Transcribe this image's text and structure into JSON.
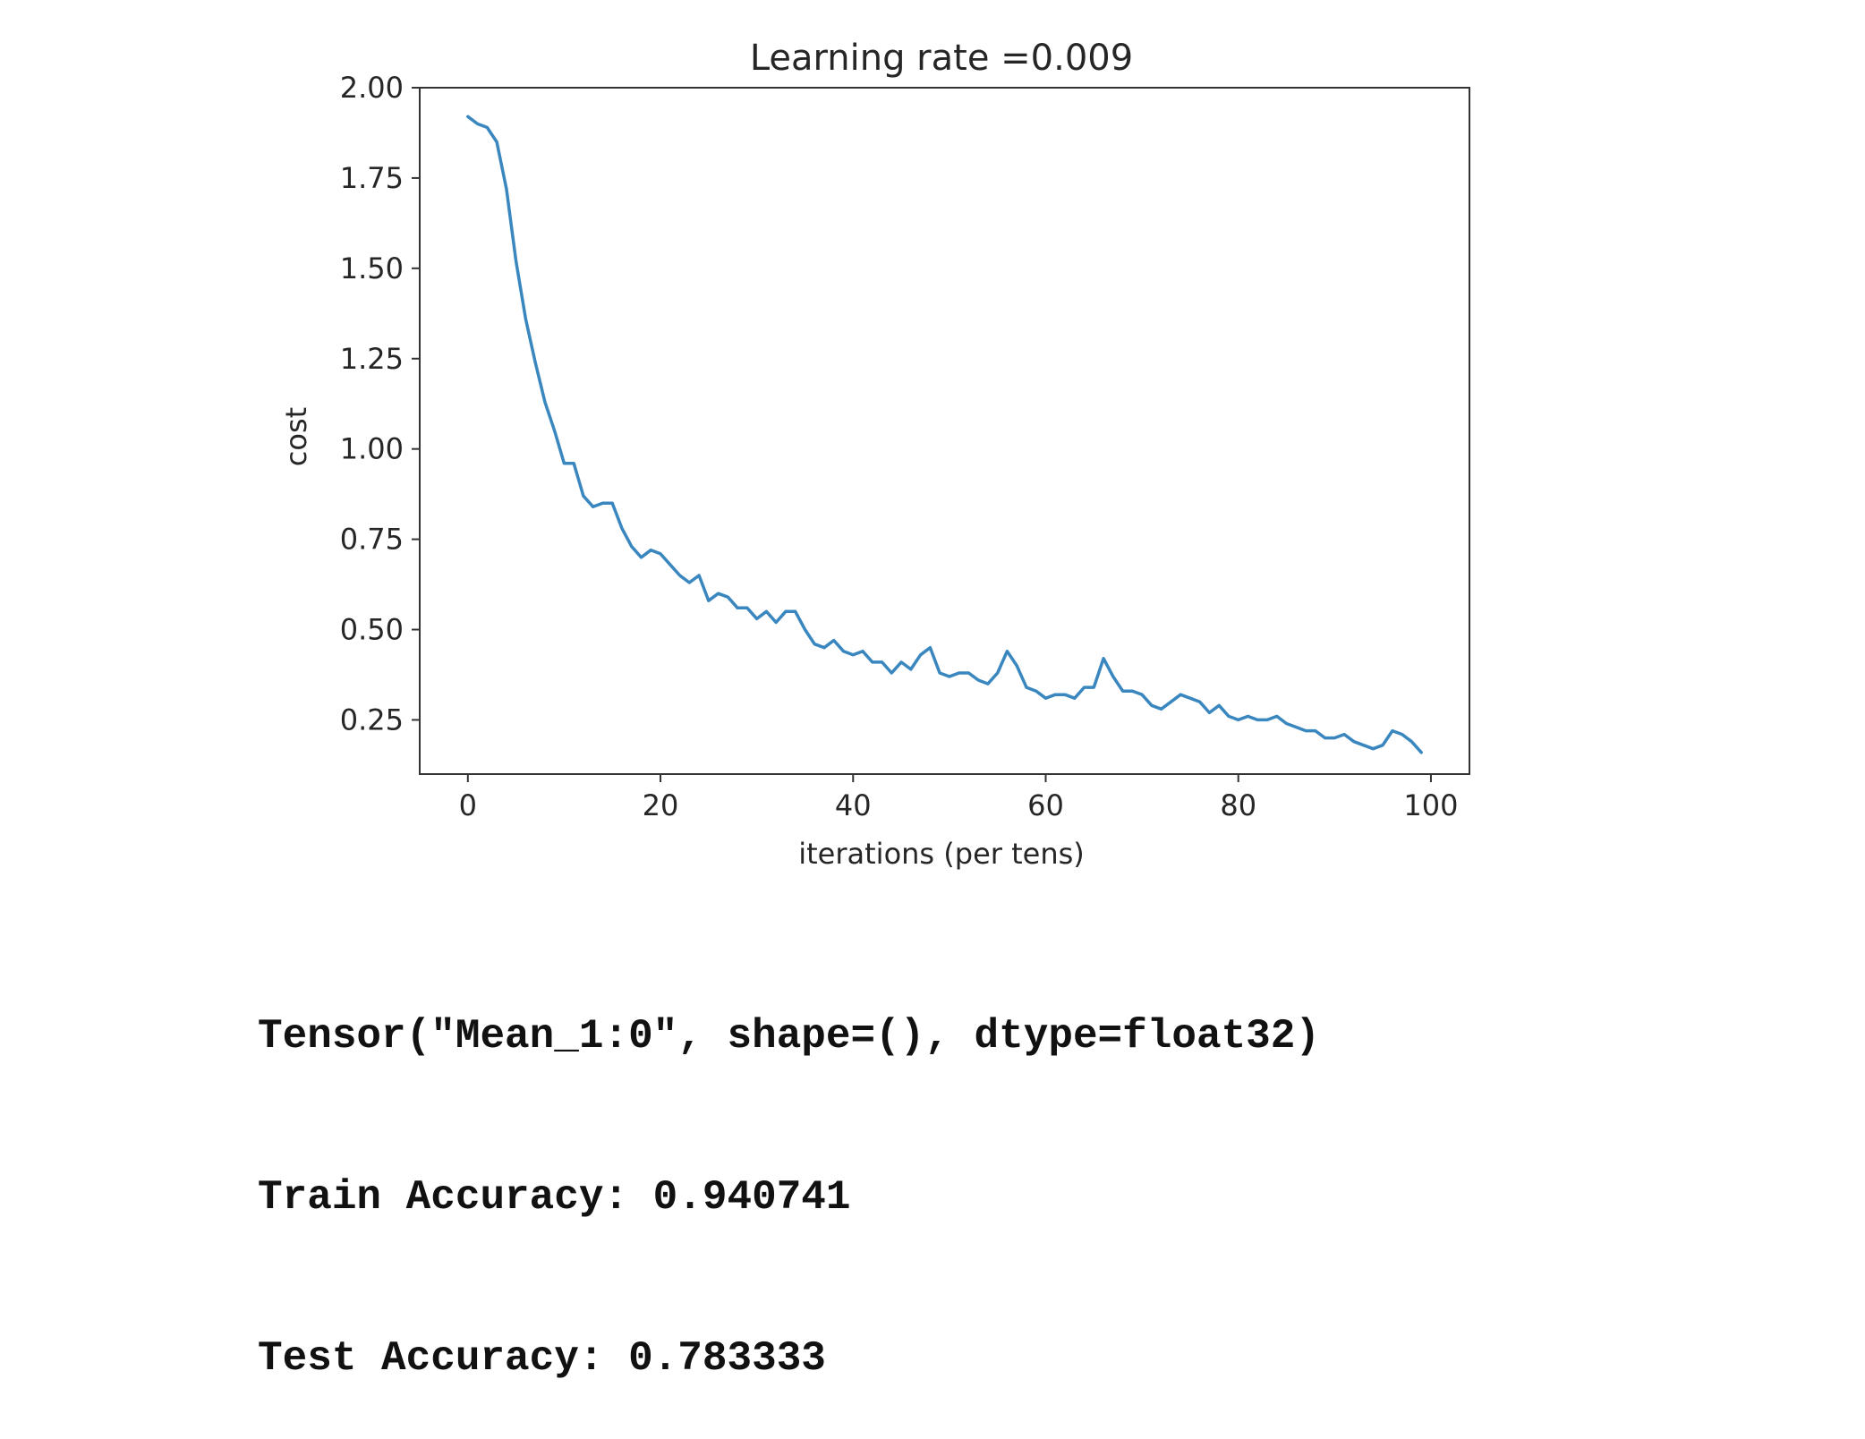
{
  "chart_data": {
    "type": "line",
    "title": "Learning rate =0.009",
    "xlabel": "iterations (per tens)",
    "ylabel": "cost",
    "xlim": [
      -5,
      104
    ],
    "ylim": [
      0.1,
      2.0
    ],
    "xticks": [
      0,
      20,
      40,
      60,
      80,
      100
    ],
    "xtick_labels": [
      "0",
      "20",
      "40",
      "60",
      "80",
      "100"
    ],
    "yticks": [
      0.25,
      0.5,
      0.75,
      1.0,
      1.25,
      1.5,
      1.75,
      2.0
    ],
    "ytick_labels": [
      "0.25",
      "0.50",
      "0.75",
      "1.00",
      "1.25",
      "1.50",
      "1.75",
      "2.00"
    ],
    "grid": false,
    "line_color": "#3a87c0",
    "series": [
      {
        "x": [
          0,
          1,
          2,
          3,
          4,
          5,
          6,
          7,
          8,
          9,
          10,
          11,
          12,
          13,
          14,
          15,
          16,
          17,
          18,
          19,
          20,
          21,
          22,
          23,
          24,
          25,
          26,
          27,
          28,
          29,
          30,
          31,
          32,
          33,
          34,
          35,
          36,
          37,
          38,
          39,
          40,
          41,
          42,
          43,
          44,
          45,
          46,
          47,
          48,
          49,
          50,
          51,
          52,
          53,
          54,
          55,
          56,
          57,
          58,
          59,
          60,
          61,
          62,
          63,
          64,
          65,
          66,
          67,
          68,
          69,
          70,
          71,
          72,
          73,
          74,
          75,
          76,
          77,
          78,
          79,
          80,
          81,
          82,
          83,
          84,
          85,
          86,
          87,
          88,
          89,
          90,
          91,
          92,
          93,
          94,
          95,
          96,
          97,
          98,
          99
        ],
        "values": [
          1.92,
          1.9,
          1.89,
          1.85,
          1.72,
          1.52,
          1.36,
          1.24,
          1.13,
          1.05,
          0.96,
          0.96,
          0.87,
          0.84,
          0.85,
          0.85,
          0.78,
          0.73,
          0.7,
          0.72,
          0.71,
          0.68,
          0.65,
          0.63,
          0.65,
          0.58,
          0.6,
          0.59,
          0.56,
          0.56,
          0.53,
          0.55,
          0.52,
          0.55,
          0.55,
          0.5,
          0.46,
          0.45,
          0.47,
          0.44,
          0.43,
          0.44,
          0.41,
          0.41,
          0.38,
          0.41,
          0.39,
          0.43,
          0.45,
          0.38,
          0.37,
          0.38,
          0.38,
          0.36,
          0.35,
          0.38,
          0.44,
          0.4,
          0.34,
          0.33,
          0.31,
          0.32,
          0.32,
          0.31,
          0.34,
          0.34,
          0.42,
          0.37,
          0.33,
          0.33,
          0.32,
          0.29,
          0.28,
          0.3,
          0.32,
          0.31,
          0.3,
          0.27,
          0.29,
          0.26,
          0.25,
          0.26,
          0.25,
          0.25,
          0.26,
          0.24,
          0.23,
          0.22,
          0.22,
          0.2,
          0.2,
          0.21,
          0.19,
          0.18,
          0.17,
          0.18,
          0.22,
          0.21,
          0.19,
          0.16
        ]
      }
    ]
  },
  "output": {
    "line1": "Tensor(\"Mean_1:0\", shape=(), dtype=float32)",
    "line2": "Train Accuracy: 0.940741",
    "line3": "Test Accuracy: 0.783333"
  }
}
